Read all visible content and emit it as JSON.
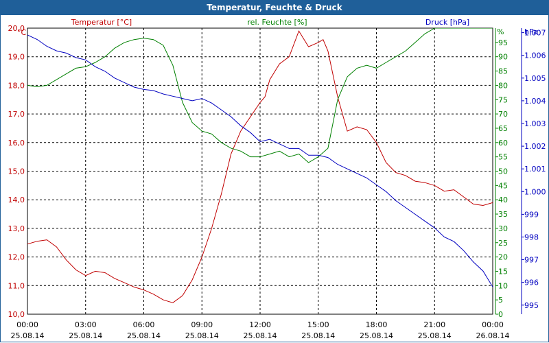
{
  "window": {
    "title": "Temperatur, Feuchte & Druck"
  },
  "colors": {
    "temperature": "#c00000",
    "humidity": "#008000",
    "pressure": "#0000c0",
    "titlebar": "#1f5f99"
  },
  "chart_data": {
    "type": "line",
    "title": "Temperatur, Feuchte & Druck",
    "grid": true,
    "x": {
      "ticks": [
        {
          "time": "00:00",
          "date": "25.08.14"
        },
        {
          "time": "03:00",
          "date": "25.08.14"
        },
        {
          "time": "06:00",
          "date": "25.08.14"
        },
        {
          "time": "09:00",
          "date": "25.08.14"
        },
        {
          "time": "12:00",
          "date": "25.08.14"
        },
        {
          "time": "15:00",
          "date": "25.08.14"
        },
        {
          "time": "18:00",
          "date": "25.08.14"
        },
        {
          "time": "21:00",
          "date": "25.08.14"
        },
        {
          "time": "00:00",
          "date": "26.08.14"
        }
      ]
    },
    "axes": {
      "temperature": {
        "label": "Temperatur [°C]",
        "unit": "°C",
        "range": [
          10.0,
          20.0
        ],
        "ticks": [
          "10,0",
          "11,0",
          "12,0",
          "13,0",
          "14,0",
          "15,0",
          "16,0",
          "17,0",
          "18,0",
          "19,0",
          "20,0"
        ]
      },
      "humidity": {
        "label": "rel. Feuchte [%]",
        "unit": "%",
        "range": [
          0,
          100
        ],
        "ticks": [
          "0",
          "5",
          "10",
          "15",
          "20",
          "25",
          "30",
          "35",
          "40",
          "45",
          "50",
          "55",
          "60",
          "65",
          "70",
          "75",
          "80",
          "85",
          "90",
          "95"
        ]
      },
      "pressure": {
        "label": "Druck [hPa]",
        "unit": "hPa",
        "range": [
          994.6,
          1007.2
        ],
        "ticks": [
          "995",
          "996",
          "997",
          "998",
          "999",
          "1.000",
          "1.001",
          "1.002",
          "1.003",
          "1.004",
          "1.005",
          "1.006",
          "1.007"
        ]
      }
    },
    "series": [
      {
        "name": "Temperatur [°C]",
        "axis": "temperature",
        "x": [
          "25.08.14 00:00",
          "25.08.14 00:30",
          "25.08.14 01:00",
          "25.08.14 01:30",
          "25.08.14 02:00",
          "25.08.14 02:30",
          "25.08.14 03:00",
          "25.08.14 03:30",
          "25.08.14 04:00",
          "25.08.14 04:30",
          "25.08.14 05:00",
          "25.08.14 05:30",
          "25.08.14 06:00",
          "25.08.14 06:30",
          "25.08.14 07:00",
          "25.08.14 07:30",
          "25.08.14 08:00",
          "25.08.14 08:30",
          "25.08.14 09:00",
          "25.08.14 09:30",
          "25.08.14 10:00",
          "25.08.14 10:30",
          "25.08.14 11:00",
          "25.08.14 11:30",
          "25.08.14 12:00",
          "25.08.14 12:15",
          "25.08.14 12:30",
          "25.08.14 13:00",
          "25.08.14 13:30",
          "25.08.14 14:00",
          "25.08.14 14:30",
          "25.08.14 15:00",
          "25.08.14 15:15",
          "25.08.14 15:30",
          "25.08.14 16:00",
          "25.08.14 16:30",
          "25.08.14 17:00",
          "25.08.14 17:30",
          "25.08.14 18:00",
          "25.08.14 18:30",
          "25.08.14 19:00",
          "25.08.14 19:30",
          "25.08.14 20:00",
          "25.08.14 20:30",
          "25.08.14 21:00",
          "25.08.14 21:30",
          "25.08.14 22:00",
          "25.08.14 22:30",
          "25.08.14 23:00",
          "25.08.14 23:30",
          "26.08.14 00:00"
        ],
        "values": [
          12.45,
          12.55,
          12.6,
          12.35,
          11.9,
          11.55,
          11.35,
          11.5,
          11.45,
          11.25,
          11.1,
          10.95,
          10.85,
          10.7,
          10.5,
          10.4,
          10.65,
          11.2,
          12.0,
          13.0,
          14.2,
          15.6,
          16.4,
          16.9,
          17.4,
          17.6,
          18.2,
          18.75,
          19.0,
          19.9,
          19.35,
          19.5,
          19.6,
          19.2,
          17.6,
          16.4,
          16.55,
          16.45,
          16.0,
          15.3,
          14.95,
          14.85,
          14.65,
          14.6,
          14.5,
          14.3,
          14.35,
          14.1,
          13.85,
          13.8,
          13.9
        ]
      },
      {
        "name": "rel. Feuchte [%]",
        "axis": "humidity",
        "x": [
          "25.08.14 00:00",
          "25.08.14 00:30",
          "25.08.14 01:00",
          "25.08.14 01:30",
          "25.08.14 02:00",
          "25.08.14 02:30",
          "25.08.14 03:00",
          "25.08.14 03:30",
          "25.08.14 04:00",
          "25.08.14 04:30",
          "25.08.14 05:00",
          "25.08.14 05:30",
          "25.08.14 06:00",
          "25.08.14 06:30",
          "25.08.14 07:00",
          "25.08.14 07:30",
          "25.08.14 08:00",
          "25.08.14 08:30",
          "25.08.14 09:00",
          "25.08.14 09:30",
          "25.08.14 10:00",
          "25.08.14 10:30",
          "25.08.14 11:00",
          "25.08.14 11:30",
          "25.08.14 12:00",
          "25.08.14 12:30",
          "25.08.14 13:00",
          "25.08.14 13:30",
          "25.08.14 14:00",
          "25.08.14 14:30",
          "25.08.14 15:00",
          "25.08.14 15:30",
          "25.08.14 16:00",
          "25.08.14 16:30",
          "25.08.14 17:00",
          "25.08.14 17:30",
          "25.08.14 18:00",
          "25.08.14 18:30",
          "25.08.14 19:00",
          "25.08.14 19:30",
          "25.08.14 20:00",
          "25.08.14 20:30",
          "25.08.14 21:00",
          "25.08.14 21:30",
          "25.08.14 22:00",
          "25.08.14 22:30",
          "25.08.14 23:00",
          "25.08.14 23:30",
          "26.08.14 00:00"
        ],
        "values": [
          80,
          79.5,
          80,
          82,
          84,
          86,
          86.5,
          88,
          90,
          93,
          95,
          96,
          96.5,
          96,
          94,
          87,
          74,
          67,
          64,
          63,
          60,
          58,
          57,
          55,
          55,
          56,
          57,
          55,
          56,
          53,
          55,
          58,
          75,
          83,
          86,
          87,
          86,
          88,
          90,
          92,
          95,
          98,
          100,
          100,
          100,
          100,
          100,
          100,
          100
        ]
      },
      {
        "name": "Druck [hPa]",
        "axis": "pressure",
        "x": [
          "25.08.14 00:00",
          "25.08.14 00:30",
          "25.08.14 01:00",
          "25.08.14 01:30",
          "25.08.14 02:00",
          "25.08.14 02:30",
          "25.08.14 03:00",
          "25.08.14 03:30",
          "25.08.14 04:00",
          "25.08.14 04:30",
          "25.08.14 05:00",
          "25.08.14 05:30",
          "25.08.14 06:00",
          "25.08.14 06:30",
          "25.08.14 07:00",
          "25.08.14 07:30",
          "25.08.14 08:00",
          "25.08.14 08:30",
          "25.08.14 09:00",
          "25.08.14 09:30",
          "25.08.14 10:00",
          "25.08.14 10:30",
          "25.08.14 11:00",
          "25.08.14 11:30",
          "25.08.14 12:00",
          "25.08.14 12:30",
          "25.08.14 13:00",
          "25.08.14 13:30",
          "25.08.14 14:00",
          "25.08.14 14:30",
          "25.08.14 15:00",
          "25.08.14 15:30",
          "25.08.14 16:00",
          "25.08.14 16:30",
          "25.08.14 17:00",
          "25.08.14 17:30",
          "25.08.14 18:00",
          "25.08.14 18:30",
          "25.08.14 19:00",
          "25.08.14 19:30",
          "25.08.14 20:00",
          "25.08.14 20:30",
          "25.08.14 21:00",
          "25.08.14 21:30",
          "25.08.14 22:00",
          "25.08.14 22:30",
          "25.08.14 23:00",
          "25.08.14 23:30",
          "26.08.14 00:00"
        ],
        "values": [
          1006.9,
          1006.7,
          1006.4,
          1006.2,
          1006.1,
          1005.9,
          1005.8,
          1005.5,
          1005.3,
          1005.0,
          1004.8,
          1004.6,
          1004.5,
          1004.45,
          1004.3,
          1004.2,
          1004.1,
          1004.0,
          1004.1,
          1003.9,
          1003.6,
          1003.3,
          1002.9,
          1002.6,
          1002.2,
          1002.3,
          1002.1,
          1001.9,
          1001.9,
          1001.6,
          1001.6,
          1001.5,
          1001.2,
          1001.0,
          1000.8,
          1000.6,
          1000.3,
          1000.0,
          999.6,
          999.3,
          999.0,
          998.7,
          998.4,
          998.0,
          997.8,
          997.4,
          996.9,
          996.5,
          995.8
        ]
      }
    ]
  }
}
